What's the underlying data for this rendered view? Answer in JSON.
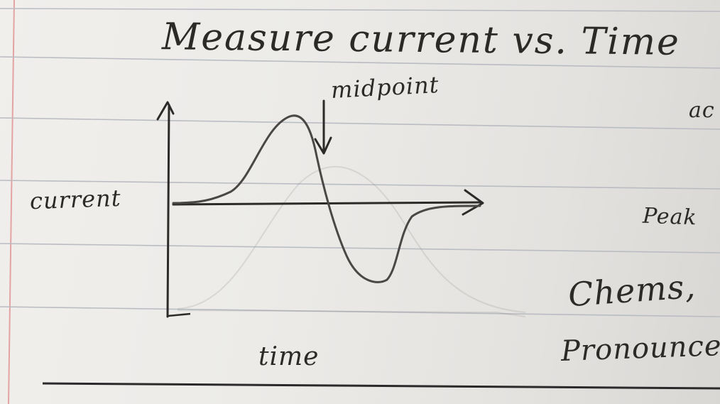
{
  "title": "Measure current vs. Time",
  "graph": {
    "y_label": "current",
    "x_label": "time",
    "annotation": "midpoint"
  },
  "margin_notes": {
    "top_right": "ac",
    "peak": "Peak",
    "chems": "Chems,",
    "pronounce": "Pronounce"
  },
  "colors": {
    "paper": "#eceae6",
    "ink": "#2c2a27",
    "rule_line": "#b8bcc4",
    "margin_line": "#e8a8a8"
  }
}
